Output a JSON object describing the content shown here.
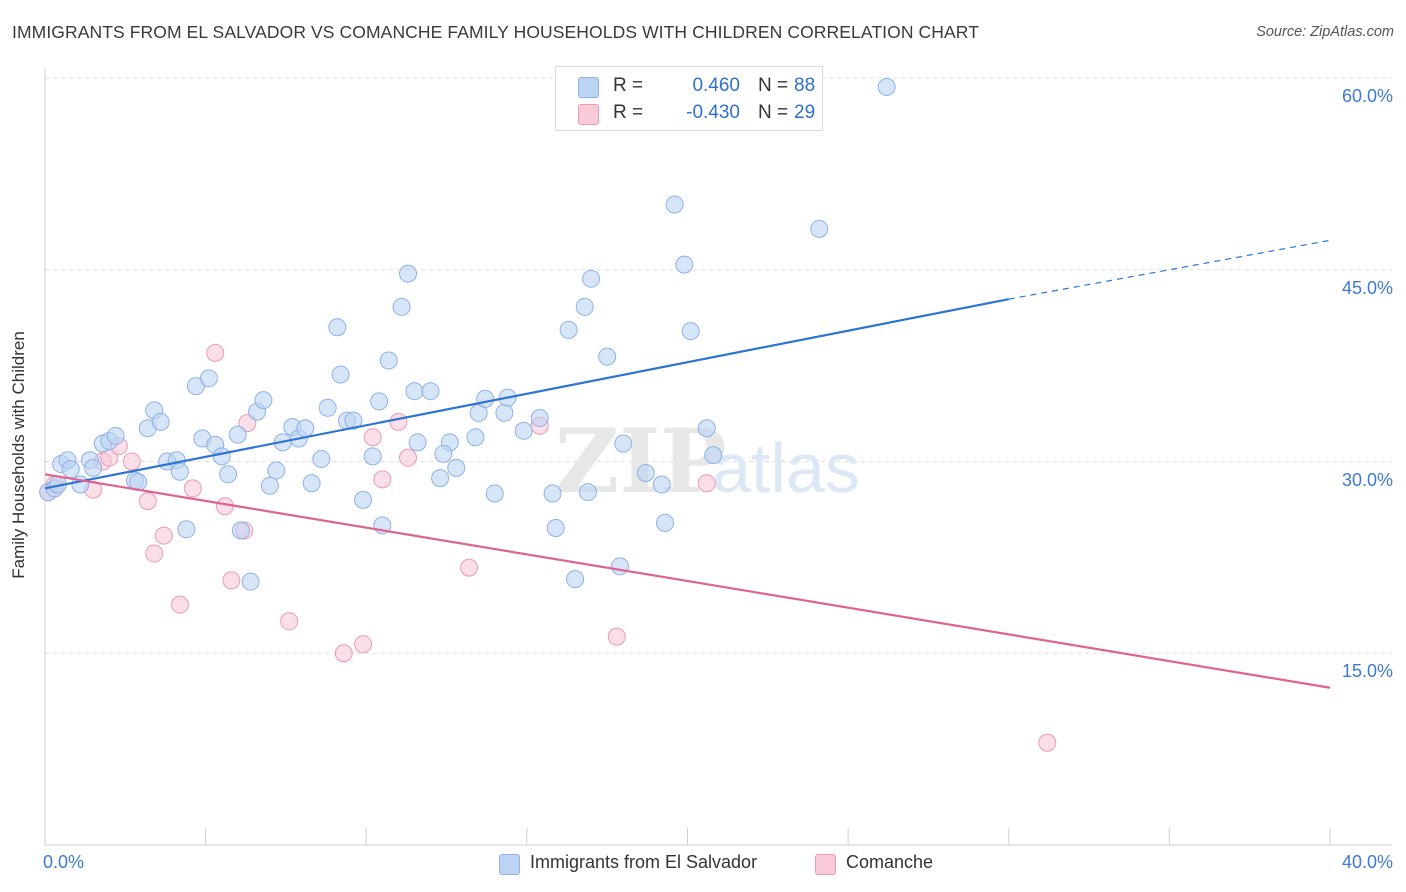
{
  "header": {
    "title": "IMMIGRANTS FROM EL SALVADOR VS COMANCHE FAMILY HOUSEHOLDS WITH CHILDREN CORRELATION CHART",
    "source": "Source: ZipAtlas.com"
  },
  "legend": {
    "series": [
      {
        "r_label": "R =",
        "r_value": "0.460",
        "n_label": "N =",
        "n_value": "88"
      },
      {
        "r_label": "R =",
        "r_value": "-0.430",
        "n_label": "N =",
        "n_value": "29"
      }
    ]
  },
  "bottom_legend": {
    "items": [
      "Immigrants from El Salvador",
      "Comanche"
    ]
  },
  "colors": {
    "blue_fill": "#bcd3f3",
    "blue_stroke": "#8fb2e8",
    "blue_line": "#2d74d4",
    "pink_fill": "#f9cad8",
    "pink_stroke": "#eb9ab5",
    "pink_line": "#e0638e",
    "tick_label": "#3f79d4",
    "grid": "#dedede"
  },
  "chart_data": {
    "type": "scatter",
    "title": "IMMIGRANTS FROM EL SALVADOR VS COMANCHE FAMILY HOUSEHOLDS WITH CHILDREN CORRELATION CHART",
    "xlabel": "",
    "ylabel": "Family Households with Children",
    "xlim": [
      0,
      40
    ],
    "ylim": [
      0,
      60
    ],
    "x_tick_labels": [
      "0.0%",
      "40.0%"
    ],
    "y_ticks": [
      15,
      30,
      45,
      60
    ],
    "y_tick_labels": [
      "15.0%",
      "30.0%",
      "45.0%",
      "60.0%"
    ],
    "grid": true,
    "legend_position": "top-center",
    "series": [
      {
        "name": "Immigrants from El Salvador",
        "color": "#8fb2e8",
        "r": 0.46,
        "n": 88,
        "trend": {
          "x": [
            0,
            30.0
          ],
          "y": [
            27.9,
            42.7
          ],
          "dashed_to": {
            "x": 40,
            "y": 47.3
          }
        },
        "points": [
          [
            0.1,
            27.6
          ],
          [
            0.3,
            27.9
          ],
          [
            0.4,
            28.2
          ],
          [
            0.5,
            29.8
          ],
          [
            0.7,
            30.1
          ],
          [
            0.8,
            29.4
          ],
          [
            1.1,
            28.2
          ],
          [
            1.4,
            30.1
          ],
          [
            1.5,
            29.5
          ],
          [
            1.8,
            31.4
          ],
          [
            2.0,
            31.6
          ],
          [
            2.2,
            32.0
          ],
          [
            2.8,
            28.5
          ],
          [
            2.9,
            28.4
          ],
          [
            3.2,
            32.6
          ],
          [
            3.4,
            34.0
          ],
          [
            3.6,
            33.1
          ],
          [
            3.8,
            30.0
          ],
          [
            4.1,
            30.1
          ],
          [
            4.2,
            29.2
          ],
          [
            4.4,
            24.7
          ],
          [
            4.7,
            35.9
          ],
          [
            4.9,
            31.8
          ],
          [
            5.1,
            36.5
          ],
          [
            5.3,
            31.3
          ],
          [
            5.5,
            30.4
          ],
          [
            5.7,
            29.0
          ],
          [
            6.0,
            32.1
          ],
          [
            6.1,
            24.6
          ],
          [
            6.4,
            20.6
          ],
          [
            6.6,
            33.9
          ],
          [
            6.8,
            34.8
          ],
          [
            7.0,
            28.1
          ],
          [
            7.2,
            29.3
          ],
          [
            7.4,
            31.5
          ],
          [
            7.7,
            32.7
          ],
          [
            7.9,
            31.8
          ],
          [
            8.1,
            32.6
          ],
          [
            8.6,
            30.2
          ],
          [
            8.8,
            34.2
          ],
          [
            9.1,
            40.5
          ],
          [
            9.2,
            36.8
          ],
          [
            9.4,
            33.2
          ],
          [
            9.6,
            33.2
          ],
          [
            9.9,
            27.0
          ],
          [
            10.2,
            30.4
          ],
          [
            10.4,
            34.7
          ],
          [
            10.5,
            25.0
          ],
          [
            10.7,
            37.9
          ],
          [
            11.1,
            42.1
          ],
          [
            11.3,
            44.7
          ],
          [
            11.5,
            35.5
          ],
          [
            11.6,
            31.5
          ],
          [
            12.0,
            35.5
          ],
          [
            12.3,
            28.7
          ],
          [
            12.6,
            31.5
          ],
          [
            12.8,
            29.5
          ],
          [
            13.4,
            31.9
          ],
          [
            13.5,
            33.8
          ],
          [
            13.7,
            34.9
          ],
          [
            14.0,
            27.5
          ],
          [
            14.3,
            33.8
          ],
          [
            14.4,
            35.0
          ],
          [
            14.9,
            32.4
          ],
          [
            15.4,
            33.4
          ],
          [
            15.8,
            27.5
          ],
          [
            15.9,
            24.8
          ],
          [
            16.3,
            40.3
          ],
          [
            16.5,
            20.8
          ],
          [
            16.8,
            42.1
          ],
          [
            16.9,
            27.6
          ],
          [
            17.0,
            44.3
          ],
          [
            17.5,
            38.2
          ],
          [
            17.9,
            21.8
          ],
          [
            18.0,
            31.4
          ],
          [
            18.7,
            29.1
          ],
          [
            19.2,
            28.2
          ],
          [
            19.3,
            25.2
          ],
          [
            19.6,
            50.1
          ],
          [
            19.9,
            45.4
          ],
          [
            20.1,
            40.2
          ],
          [
            20.6,
            32.6
          ],
          [
            20.8,
            30.5
          ],
          [
            24.1,
            48.2
          ],
          [
            26.2,
            59.3
          ],
          [
            23.4,
            58.2
          ],
          [
            12.4,
            30.6
          ],
          [
            8.3,
            28.3
          ]
        ]
      },
      {
        "name": "Comanche",
        "color": "#eb9ab5",
        "r": -0.43,
        "n": 29,
        "trend": {
          "x": [
            0,
            40
          ],
          "y": [
            29.0,
            12.3
          ]
        },
        "points": [
          [
            0.1,
            27.6
          ],
          [
            0.3,
            28.2
          ],
          [
            1.5,
            27.8
          ],
          [
            1.8,
            30.0
          ],
          [
            2.0,
            30.3
          ],
          [
            2.3,
            31.2
          ],
          [
            2.7,
            30.0
          ],
          [
            3.2,
            26.9
          ],
          [
            3.4,
            22.8
          ],
          [
            3.7,
            24.2
          ],
          [
            4.2,
            18.8
          ],
          [
            4.6,
            27.9
          ],
          [
            5.3,
            38.5
          ],
          [
            5.6,
            26.5
          ],
          [
            5.8,
            20.7
          ],
          [
            6.2,
            24.6
          ],
          [
            6.3,
            33.0
          ],
          [
            7.6,
            17.5
          ],
          [
            9.3,
            15.0
          ],
          [
            9.9,
            15.7
          ],
          [
            10.2,
            31.9
          ],
          [
            10.5,
            28.6
          ],
          [
            11.0,
            33.1
          ],
          [
            11.3,
            30.3
          ],
          [
            13.2,
            21.7
          ],
          [
            15.4,
            32.8
          ],
          [
            17.8,
            16.3
          ],
          [
            20.6,
            28.3
          ],
          [
            31.2,
            8.0
          ]
        ]
      }
    ]
  }
}
